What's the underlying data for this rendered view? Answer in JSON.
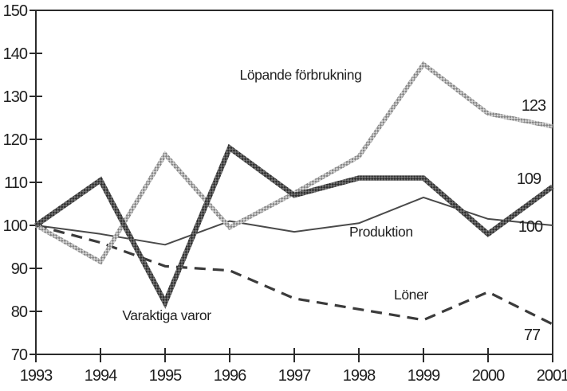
{
  "chart_data": {
    "type": "line",
    "title": "",
    "xlabel": "",
    "ylabel": "",
    "x": [
      1993,
      1994,
      1995,
      1996,
      1997,
      1998,
      1999,
      2000,
      2001
    ],
    "y_ticks": [
      150,
      140,
      130,
      120,
      110,
      100,
      90,
      80,
      70
    ],
    "ylim": [
      70,
      150
    ],
    "grid": false,
    "legend_position": "inline-labels",
    "series": [
      {
        "key": "lopande",
        "name": "Löpande förbrukning",
        "style": "hatched-gray",
        "values": [
          100,
          91.5,
          116.5,
          99.5,
          107.5,
          116,
          137.5,
          126,
          123
        ],
        "end_label": "123"
      },
      {
        "key": "varaktiga",
        "name": "Varaktiga varor",
        "style": "thick-dark",
        "values": [
          100,
          110.5,
          82,
          118,
          107,
          111,
          111,
          98,
          109
        ],
        "end_label": "109"
      },
      {
        "key": "produktion",
        "name": "Produktion",
        "style": "thin-solid",
        "values": [
          100,
          98,
          95.5,
          101,
          98.5,
          100.5,
          106.5,
          101.5,
          100
        ],
        "end_label": "100"
      },
      {
        "key": "loner",
        "name": "Löner",
        "style": "dashed",
        "values": [
          100,
          96,
          90.5,
          89.5,
          83,
          80.5,
          78,
          84.5,
          77
        ],
        "end_label": "77"
      }
    ]
  },
  "colors": {
    "text": "#1f1f1f",
    "axis": "#2b2b2b",
    "hatched_light": "#d8d8d8",
    "hatched_dark": "#838383",
    "thick_light": "#777777",
    "thick_dark": "#2e2e2e",
    "thin_line": "#4a4a4a",
    "dashed_line": "#3b3b3b"
  }
}
